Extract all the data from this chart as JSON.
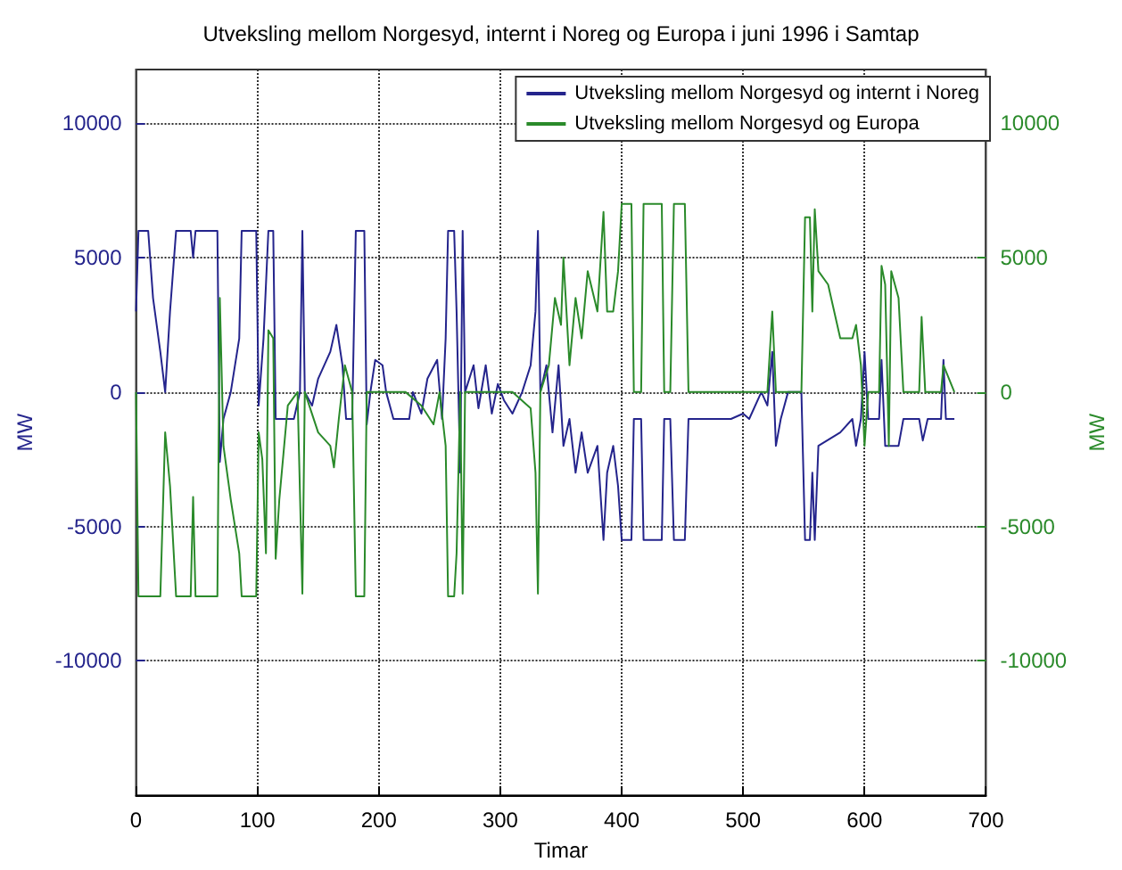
{
  "chart_data": {
    "type": "line",
    "title": "Utveksling mellom Norgesyd, internt i Noreg og Europa i juni 1996 i Samtap",
    "xlabel": "Timar",
    "ylabel": "MW",
    "y2label": "MW",
    "xlim": [
      0,
      700
    ],
    "xticks": [
      0,
      100,
      200,
      300,
      400,
      500,
      600,
      700
    ],
    "ylim": [
      -15000,
      12000
    ],
    "yticks": [
      -10000,
      -5000,
      0,
      5000,
      10000
    ],
    "y2lim": [
      -15000,
      12000
    ],
    "y2ticks": [
      -10000,
      -5000,
      0,
      5000,
      10000
    ],
    "grid": true,
    "legend": "top right",
    "marker": "none",
    "line_style": "solid",
    "series": [
      {
        "name": "Utveksling mellom Norgesyd og internt i Noreg",
        "color": "#24248c",
        "x": [
          0,
          2,
          10,
          14,
          20,
          24,
          28,
          33,
          45,
          47,
          49,
          67,
          69,
          72,
          78,
          85,
          87,
          99,
          101,
          105,
          109,
          113,
          115,
          130,
          135,
          137,
          139,
          145,
          150,
          160,
          165,
          170,
          173,
          178,
          181,
          188,
          190,
          193,
          197,
          203,
          206,
          212,
          225,
          228,
          235,
          240,
          248,
          252,
          255,
          257,
          262,
          264,
          267,
          269,
          271,
          278,
          282,
          288,
          293,
          298,
          303,
          310,
          318,
          325,
          329,
          331,
          333,
          338,
          343,
          348,
          352,
          357,
          362,
          367,
          372,
          380,
          385,
          388,
          393,
          397,
          400,
          408,
          410,
          416,
          418,
          433,
          435,
          440,
          443,
          452,
          455,
          470,
          490,
          500,
          505,
          515,
          520,
          524,
          527,
          531,
          537,
          548,
          551,
          555,
          557,
          559,
          562,
          580,
          590,
          593,
          597,
          600,
          603,
          612,
          614,
          617,
          628,
          632,
          645,
          648,
          652,
          663,
          665,
          667,
          674
        ],
        "values": [
          3000,
          6000,
          6000,
          3500,
          1500,
          0,
          3000,
          6000,
          6000,
          5000,
          6000,
          6000,
          -2600,
          -1000,
          0,
          2000,
          6000,
          6000,
          -500,
          2000,
          6000,
          6000,
          -1000,
          -1000,
          0,
          6000,
          0,
          -500,
          500,
          1500,
          2500,
          1000,
          -1000,
          -1000,
          6000,
          6000,
          -1200,
          0,
          1200,
          1000,
          0,
          -1000,
          -1000,
          0,
          -800,
          500,
          1200,
          -1000,
          2000,
          6000,
          6000,
          3000,
          -3000,
          6000,
          0,
          1000,
          -600,
          1000,
          -800,
          300,
          -300,
          -800,
          0,
          1000,
          3000,
          6000,
          0,
          1000,
          -1500,
          1000,
          -2000,
          -1000,
          -3000,
          -1500,
          -3000,
          -2000,
          -5500,
          -3000,
          -2000,
          -3500,
          -5500,
          -5500,
          -1000,
          -1000,
          -5500,
          -5500,
          -1000,
          -1000,
          -5500,
          -5500,
          -1000,
          -1000,
          -1000,
          -800,
          -1000,
          0,
          -500,
          1500,
          -2000,
          -1000,
          0,
          0,
          -5500,
          -5500,
          -3000,
          -5500,
          -2000,
          -1500,
          -1000,
          -2000,
          -1000,
          1500,
          -1000,
          -1000,
          1200,
          -2000,
          -2000,
          -1000,
          -1000,
          -1800,
          -1000,
          -1000,
          1200,
          -1000,
          -1000
        ]
      },
      {
        "name": "Utveksling mellom Norgesyd og Europa",
        "color": "#2a8a2a",
        "axis": "y2",
        "x": [
          0,
          2,
          20,
          24,
          28,
          33,
          45,
          47,
          49,
          67,
          69,
          72,
          78,
          85,
          87,
          99,
          101,
          104,
          107,
          109,
          113,
          115,
          118,
          125,
          133,
          137,
          139,
          150,
          160,
          163,
          167,
          172,
          178,
          181,
          188,
          190,
          222,
          235,
          245,
          250,
          255,
          257,
          262,
          264,
          267,
          269,
          271,
          285,
          300,
          310,
          325,
          329,
          331,
          333,
          340,
          345,
          350,
          352,
          357,
          362,
          367,
          372,
          380,
          385,
          388,
          393,
          397,
          400,
          408,
          410,
          416,
          418,
          433,
          435,
          440,
          443,
          452,
          455,
          520,
          524,
          527,
          548,
          551,
          555,
          557,
          559,
          562,
          570,
          580,
          590,
          593,
          597,
          600,
          603,
          612,
          614,
          617,
          620,
          622,
          628,
          632,
          645,
          647,
          650,
          663,
          665,
          674
        ],
        "values": [
          0,
          -7600,
          -7600,
          -1500,
          -3500,
          -7600,
          -7600,
          -3900,
          -7600,
          -7600,
          3500,
          -2000,
          -4000,
          -6000,
          -7600,
          -7600,
          -1500,
          -2500,
          -6000,
          2300,
          2000,
          -6200,
          -4000,
          -500,
          0,
          -7500,
          0,
          -1500,
          -2000,
          -2800,
          -1000,
          1000,
          0,
          -7600,
          -7600,
          0,
          0,
          -500,
          -1200,
          0,
          -2000,
          -7600,
          -7600,
          -6000,
          0,
          -7500,
          0,
          0,
          0,
          0,
          -600,
          -3000,
          -7500,
          0,
          1000,
          3500,
          2500,
          5000,
          1000,
          3500,
          2000,
          4500,
          3000,
          6700,
          3000,
          3000,
          4500,
          7000,
          7000,
          0,
          0,
          7000,
          7000,
          0,
          0,
          7000,
          7000,
          0,
          0,
          3000,
          0,
          0,
          6500,
          6500,
          3000,
          6800,
          4500,
          4000,
          2000,
          2000,
          2500,
          1000,
          -2000,
          0,
          0,
          4700,
          4000,
          -2000,
          4500,
          3500,
          0,
          0,
          2800,
          0,
          0,
          1000,
          0
        ]
      }
    ]
  }
}
